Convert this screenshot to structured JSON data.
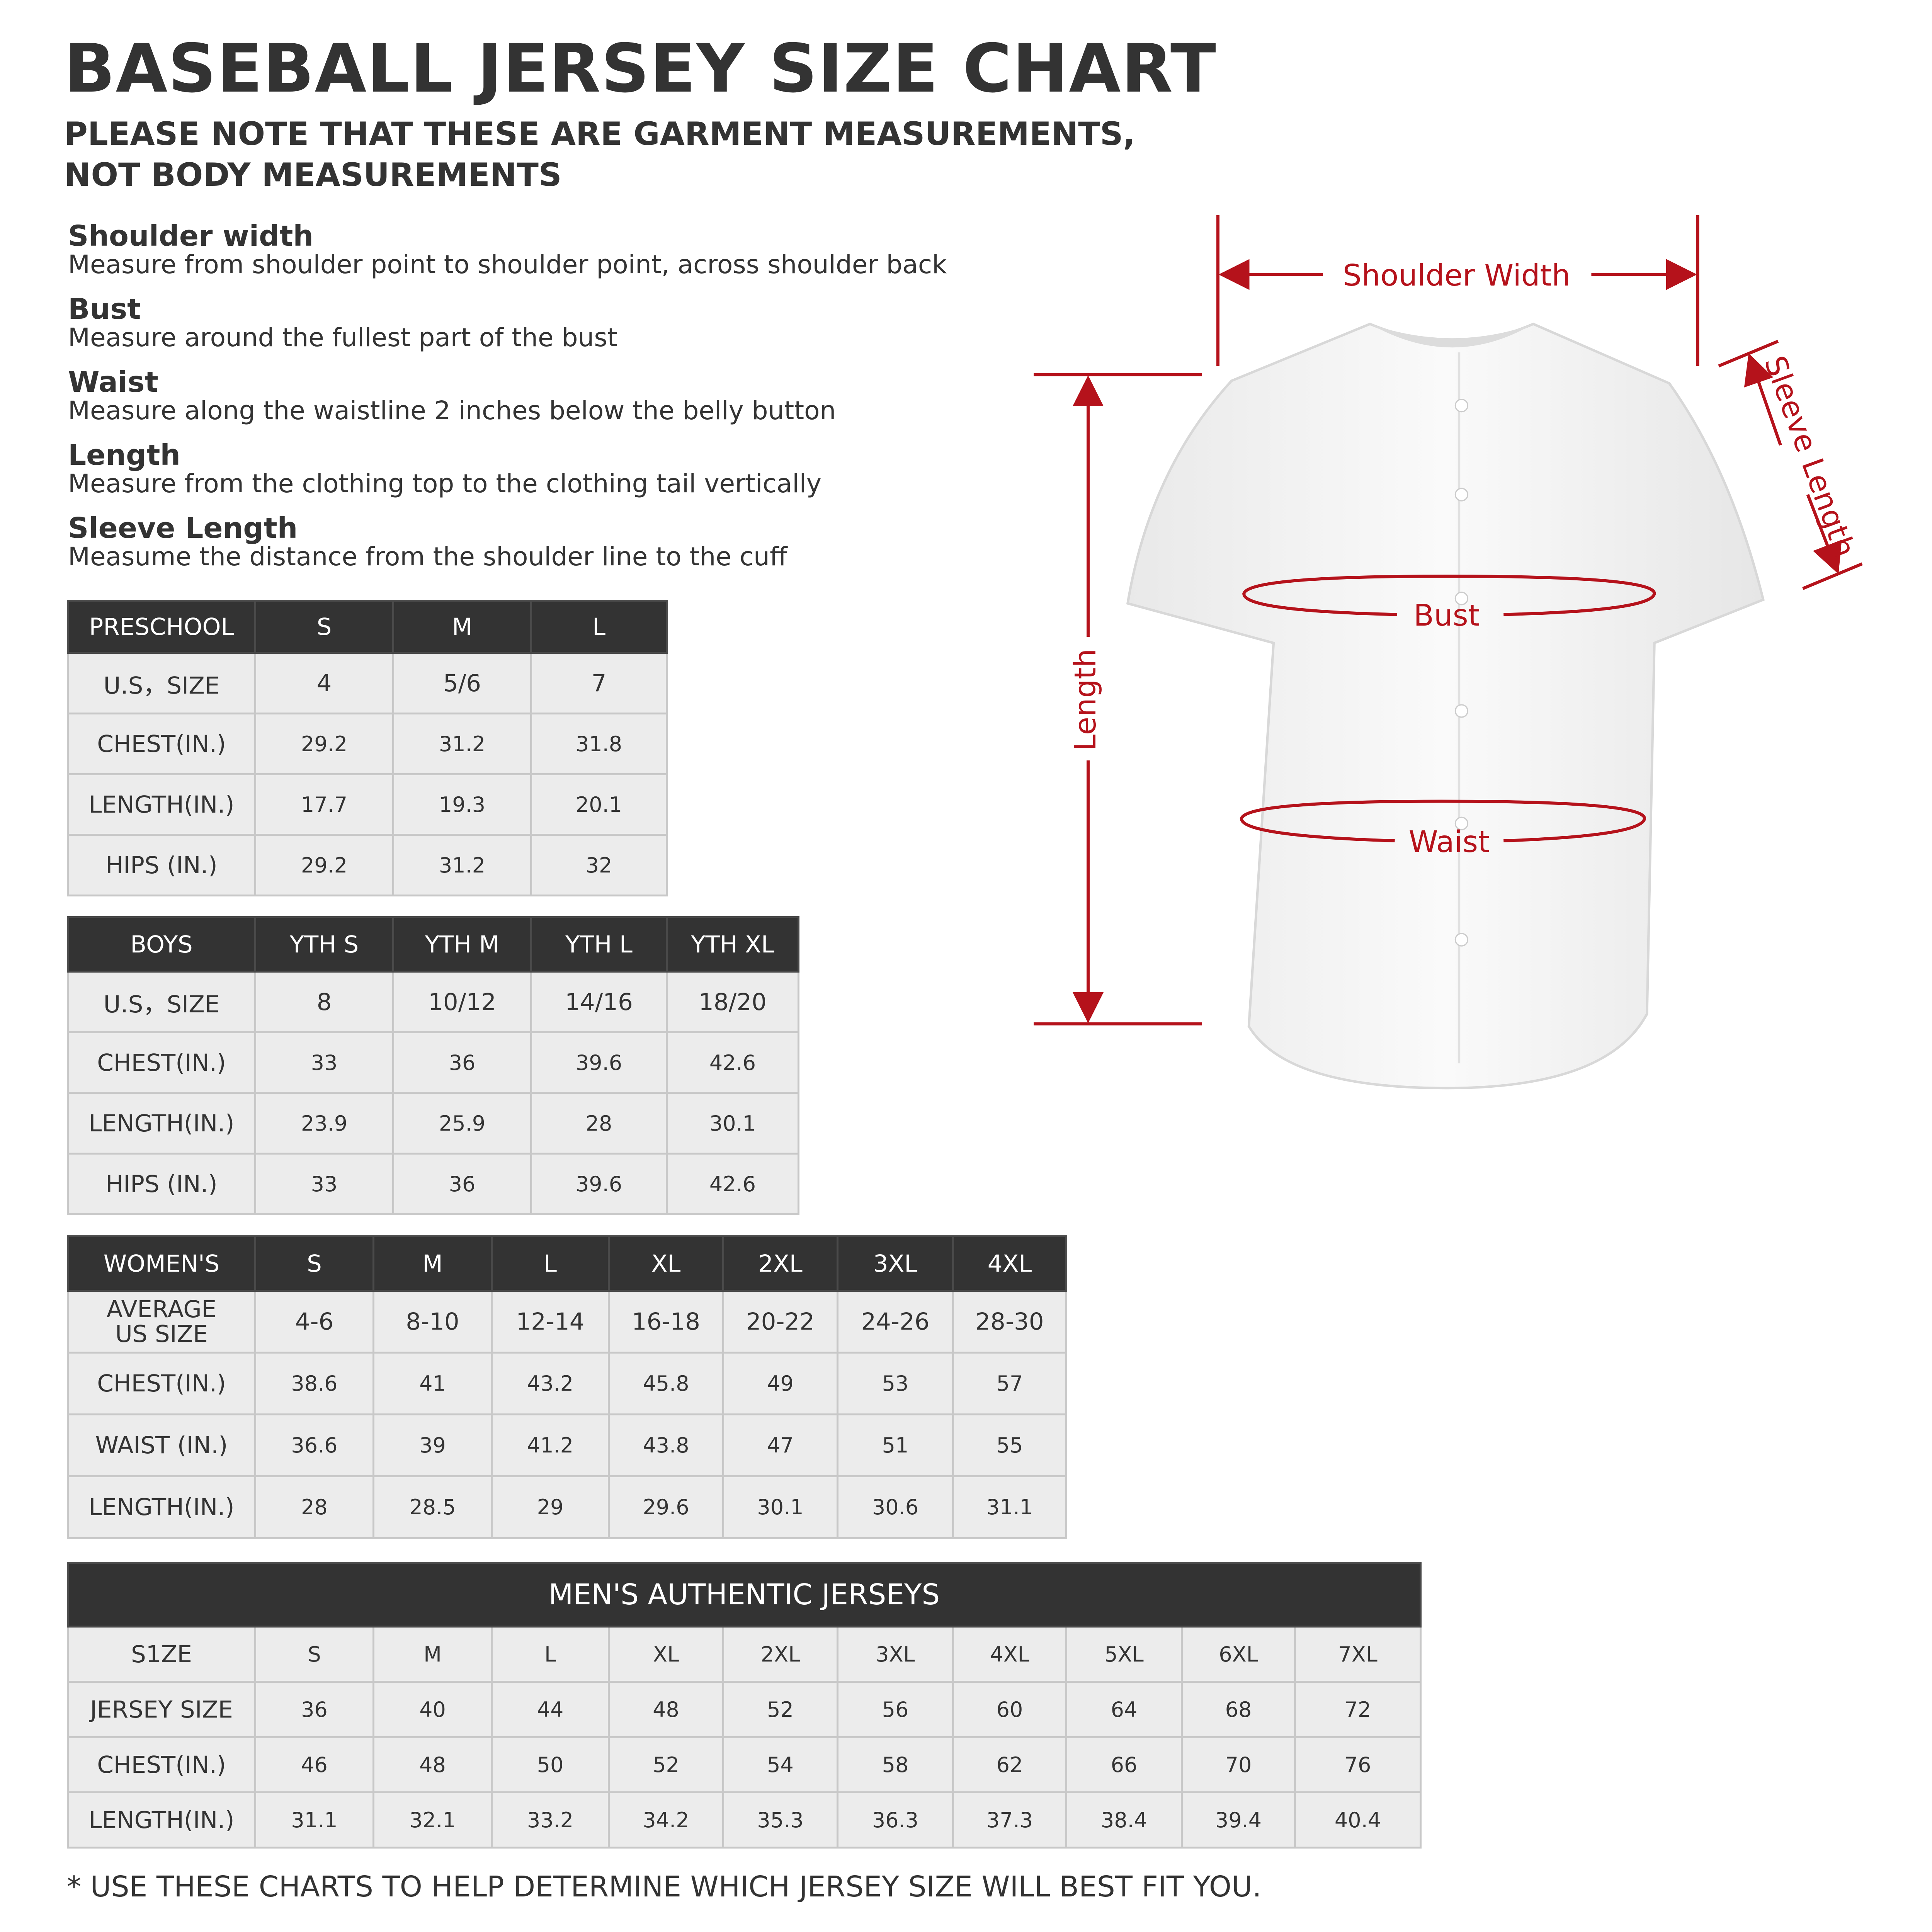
{
  "title": "BASEBALL JERSEY SIZE CHART",
  "subtitle": [
    "PLEASE NOTE THAT THESE ARE GARMENT MEASUREMENTS,",
    "NOT BODY MEASUREMENTS"
  ],
  "definitions": [
    {
      "term": "Shoulder width",
      "desc": "Measure from shoulder point to shoulder point, across shoulder back"
    },
    {
      "term": "Bust",
      "desc": "Measure around the fullest part of the bust"
    },
    {
      "term": "Waist",
      "desc": "Measure along the waistline 2 inches below the belly button"
    },
    {
      "term": "Length",
      "desc": "Measure from the clothing top to the clothing tail vertically"
    },
    {
      "term": "Sleeve Length",
      "desc": "Measume the distance from the shoulder line to the cuff"
    }
  ],
  "diagram": {
    "labels": {
      "shoulder": "Shoulder Width",
      "sleeve": "Sleeve Length",
      "bust": "Bust",
      "waist": "Waist",
      "length": "Length"
    },
    "accent_color": "#b5121b"
  },
  "tables": {
    "preschool": {
      "header": [
        "PRESCHOOL",
        "S",
        "M",
        "L"
      ],
      "rows": [
        [
          "U.S，SIZE",
          "4",
          "5/6",
          "7"
        ],
        [
          "CHEST(IN.)",
          "29.2",
          "31.2",
          "31.8"
        ],
        [
          "LENGTH(IN.)",
          "17.7",
          "19.3",
          "20.1"
        ],
        [
          "HIPS (IN.)",
          "29.2",
          "31.2",
          "32"
        ]
      ]
    },
    "boys": {
      "header": [
        "BOYS",
        "YTH S",
        "YTH M",
        "YTH L",
        "YTH XL"
      ],
      "rows": [
        [
          "U.S，SIZE",
          "8",
          "10/12",
          "14/16",
          "18/20"
        ],
        [
          "CHEST(IN.)",
          "33",
          "36",
          "39.6",
          "42.6"
        ],
        [
          "LENGTH(IN.)",
          "23.9",
          "25.9",
          "28",
          "30.1"
        ],
        [
          "HIPS (IN.)",
          "33",
          "36",
          "39.6",
          "42.6"
        ]
      ]
    },
    "womens": {
      "header": [
        "WOMEN'S",
        "S",
        "M",
        "L",
        "XL",
        "2XL",
        "3XL",
        "4XL"
      ],
      "rows": [
        [
          "AVERAGE\nUS SIZE",
          "4-6",
          "8-10",
          "12-14",
          "16-18",
          "20-22",
          "24-26",
          "28-30"
        ],
        [
          "CHEST(IN.)",
          "38.6",
          "41",
          "43.2",
          "45.8",
          "49",
          "53",
          "57"
        ],
        [
          "WAIST (IN.)",
          "36.6",
          "39",
          "41.2",
          "43.8",
          "47",
          "51",
          "55"
        ],
        [
          "LENGTH(IN.)",
          "28",
          "28.5",
          "29",
          "29.6",
          "30.1",
          "30.6",
          "31.1"
        ]
      ]
    },
    "mens": {
      "title": "MEN'S AUTHENTIC JERSEYS",
      "rows": [
        [
          "S1ZE",
          "S",
          "M",
          "L",
          "XL",
          "2XL",
          "3XL",
          "4XL",
          "5XL",
          "6XL",
          "7XL"
        ],
        [
          "JERSEY SIZE",
          "36",
          "40",
          "44",
          "48",
          "52",
          "56",
          "60",
          "64",
          "68",
          "72"
        ],
        [
          "CHEST(IN.)",
          "46",
          "48",
          "50",
          "52",
          "54",
          "58",
          "62",
          "66",
          "70",
          "76"
        ],
        [
          "LENGTH(IN.)",
          "31.1",
          "32.1",
          "33.2",
          "34.2",
          "35.3",
          "36.3",
          "37.3",
          "38.4",
          "39.4",
          "40.4"
        ]
      ]
    }
  },
  "footnote": "* USE THESE CHARTS TO HELP DETERMINE WHICH JERSEY SIZE WILL BEST FIT YOU."
}
